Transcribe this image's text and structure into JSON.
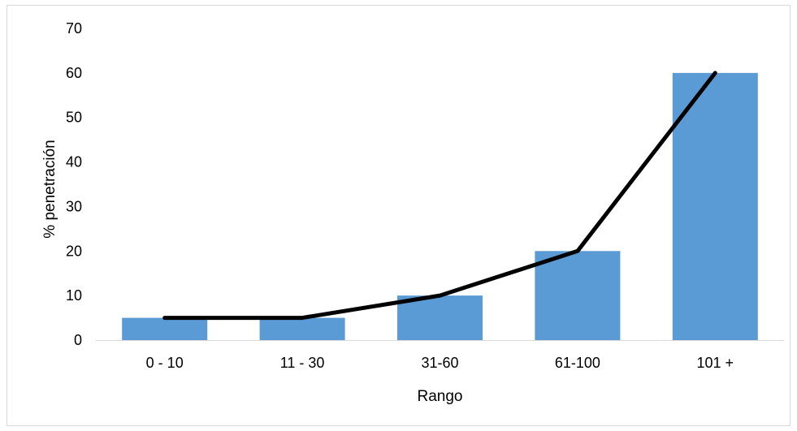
{
  "chart_data": {
    "type": "bar",
    "categories": [
      "0 - 10",
      "11 - 30",
      "31-60",
      "61-100",
      "101  +"
    ],
    "series": [
      {
        "type": "bar",
        "values": [
          5,
          5,
          10,
          20,
          60
        ],
        "color": "#5b9bd5"
      },
      {
        "type": "line",
        "values": [
          5,
          5,
          10,
          20,
          60
        ],
        "color": "#000000"
      }
    ],
    "xlabel": "Rango",
    "ylabel": "% penetración",
    "ylim": [
      0,
      70
    ],
    "yticks": [
      0,
      10,
      20,
      30,
      40,
      50,
      60,
      70
    ],
    "grid": false,
    "legend": "none"
  }
}
